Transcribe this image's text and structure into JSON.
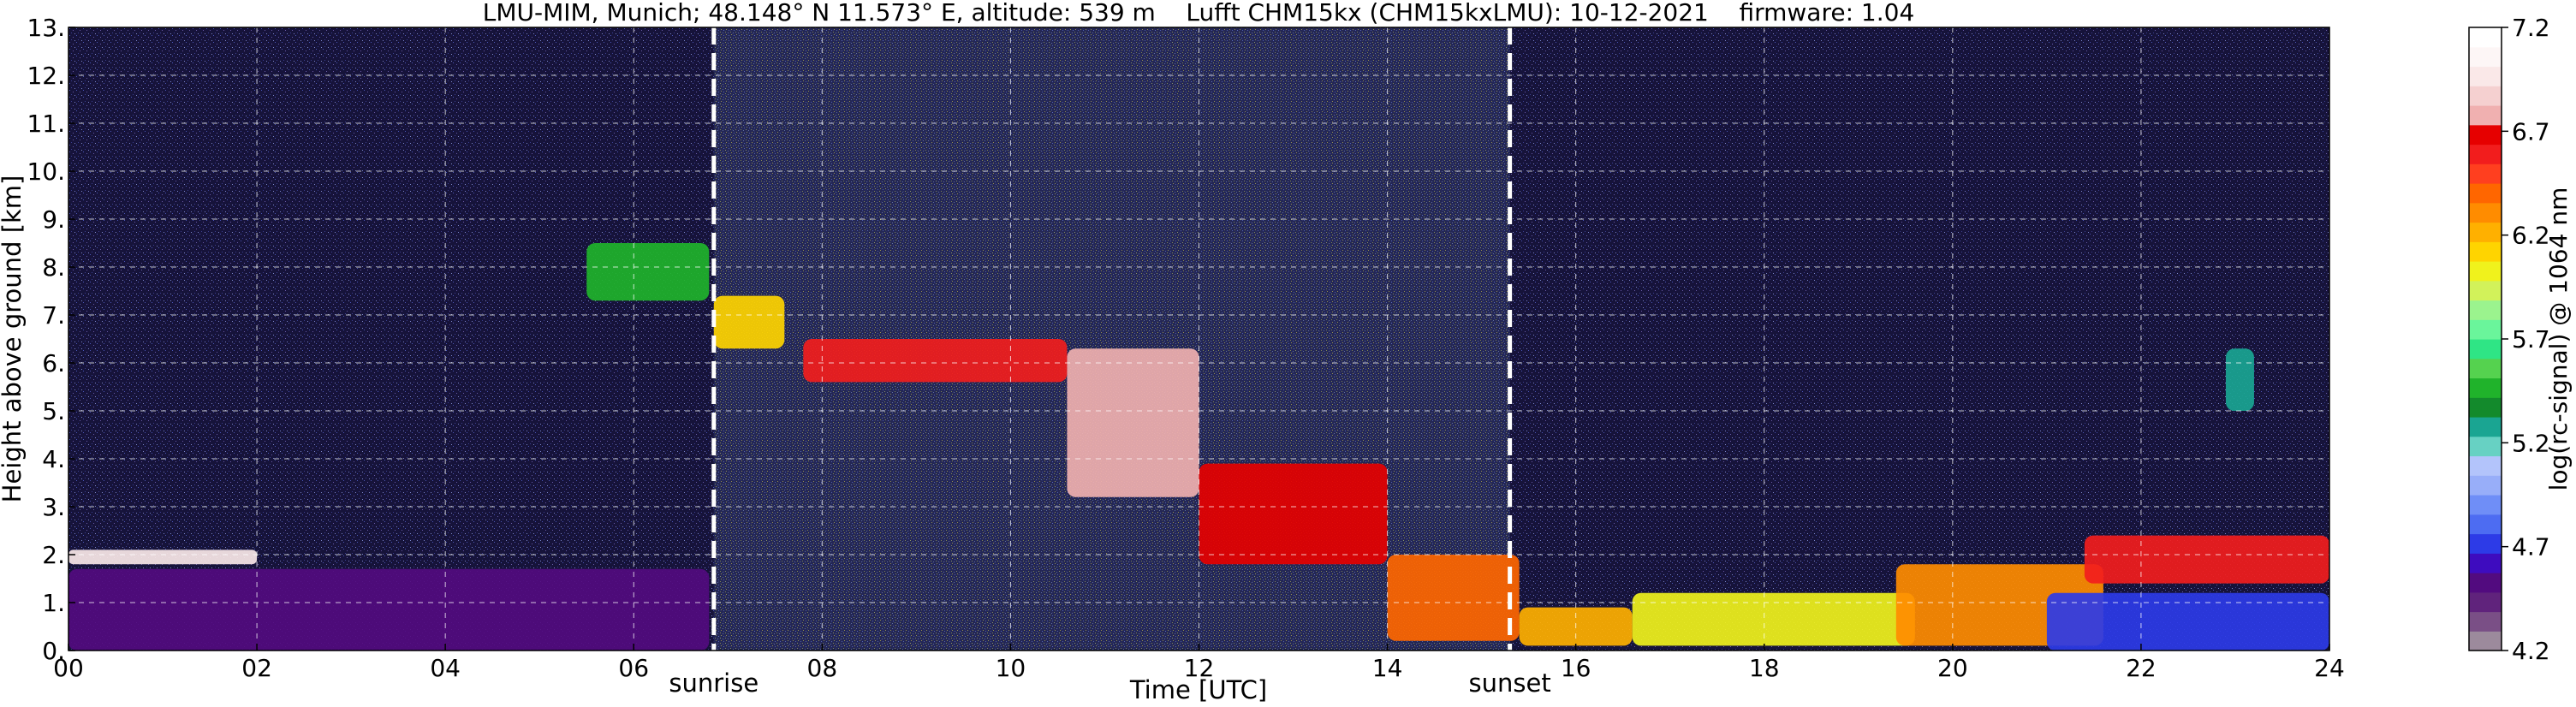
{
  "chart_data": {
    "type": "heatmap",
    "title": "LMU-MIM, Munich; 48.148° N 11.573° E, altitude: 539 m    Lufft CHM15kx (CHM15kxLMU): 10-12-2021    firmware: 1.04",
    "xlabel": "Time [UTC]",
    "ylabel": "Height above ground [km]",
    "xlim": [
      0,
      24
    ],
    "ylim": [
      0,
      13
    ],
    "x_ticks": [
      "00",
      "02",
      "04",
      "06",
      "08",
      "10",
      "12",
      "14",
      "16",
      "18",
      "20",
      "22",
      "24"
    ],
    "y_ticks": [
      "0.",
      "1.",
      "2.",
      "3.",
      "4.",
      "5.",
      "6.",
      "7.",
      "8.",
      "9.",
      "10.",
      "11.",
      "12.",
      "13."
    ],
    "grid": true,
    "annotations": [
      {
        "label": "sunrise",
        "x": 6.85
      },
      {
        "label": "sunset",
        "x": 15.3
      }
    ],
    "colorbar": {
      "label": "log(rc-signal) @ 1064 nm",
      "range": [
        4.2,
        7.2
      ],
      "ticks": [
        "4.2",
        "4.7",
        "5.2",
        "5.7",
        "6.2",
        "6.7",
        "7.2"
      ],
      "colors": [
        "#9c8a9c",
        "#7a4f86",
        "#60237c",
        "#520b7f",
        "#3e0cbf",
        "#2d3be7",
        "#4d6cf2",
        "#6f8ef7",
        "#98aef9",
        "#b3c4fb",
        "#67d1c3",
        "#1aa592",
        "#138a2c",
        "#20b32b",
        "#55d24f",
        "#2fe585",
        "#6af59b",
        "#9bf38e",
        "#d2f25a",
        "#f0f21c",
        "#ffd400",
        "#ffb000",
        "#ff8c00",
        "#ff6600",
        "#ff3f1f",
        "#f21d1d",
        "#e60000",
        "#f0b0b0",
        "#f5d0d0",
        "#fae8e8",
        "#fdf6f6",
        "#ffffff"
      ]
    },
    "features": [
      {
        "t0": 5.5,
        "t1": 6.8,
        "h0": 7.3,
        "h1": 8.5,
        "level": 5.5
      },
      {
        "t0": 6.85,
        "t1": 7.6,
        "h0": 6.3,
        "h1": 7.4,
        "level": 6.1
      },
      {
        "t0": 7.8,
        "t1": 10.6,
        "h0": 5.6,
        "h1": 6.5,
        "level": 6.6
      },
      {
        "t0": 10.6,
        "t1": 12.0,
        "h0": 3.2,
        "h1": 6.3,
        "level": 6.8
      },
      {
        "t0": 12.0,
        "t1": 14.0,
        "h0": 1.8,
        "h1": 3.9,
        "level": 6.7
      },
      {
        "t0": 14.0,
        "t1": 15.4,
        "h0": 0.2,
        "h1": 2.0,
        "level": 6.4
      },
      {
        "t0": 15.4,
        "t1": 16.6,
        "h0": 0.1,
        "h1": 0.9,
        "level": 6.2
      },
      {
        "t0": 16.6,
        "t1": 19.6,
        "h0": 0.1,
        "h1": 1.2,
        "level": 6.0
      },
      {
        "t0": 19.4,
        "t1": 21.6,
        "h0": 0.1,
        "h1": 1.8,
        "level": 6.3
      },
      {
        "t0": 21.4,
        "t1": 24.0,
        "h0": 1.4,
        "h1": 2.4,
        "level": 6.6
      },
      {
        "t0": 22.9,
        "t1": 23.2,
        "h0": 5.0,
        "h1": 6.3,
        "level": 5.3
      },
      {
        "t0": 0.0,
        "t1": 2.0,
        "h0": 1.8,
        "h1": 2.1,
        "level": 7.0
      },
      {
        "t0": 0.0,
        "t1": 6.8,
        "h0": 0.0,
        "h1": 1.7,
        "level": 4.5
      },
      {
        "t0": 21.0,
        "t1": 24.0,
        "h0": 0.0,
        "h1": 1.2,
        "level": 4.7
      }
    ]
  }
}
